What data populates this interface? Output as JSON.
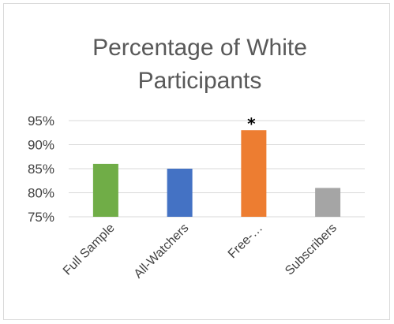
{
  "chart_data": {
    "type": "bar",
    "title_lines": [
      "Percentage of White",
      "Participants"
    ],
    "categories": [
      "Full Sample",
      "All-Watchers",
      "Free-…",
      "Subscribers"
    ],
    "values": [
      86,
      85,
      93,
      81
    ],
    "colors": [
      "#70ad47",
      "#4472c4",
      "#ed7d31",
      "#a5a5a5"
    ],
    "ylim": [
      75,
      95
    ],
    "yticks": [
      "75%",
      "80%",
      "85%",
      "90%",
      "95%"
    ],
    "grid": true,
    "annotations": [
      {
        "category": "Free-…",
        "text": "*"
      }
    ],
    "xlabel": "",
    "ylabel": ""
  }
}
